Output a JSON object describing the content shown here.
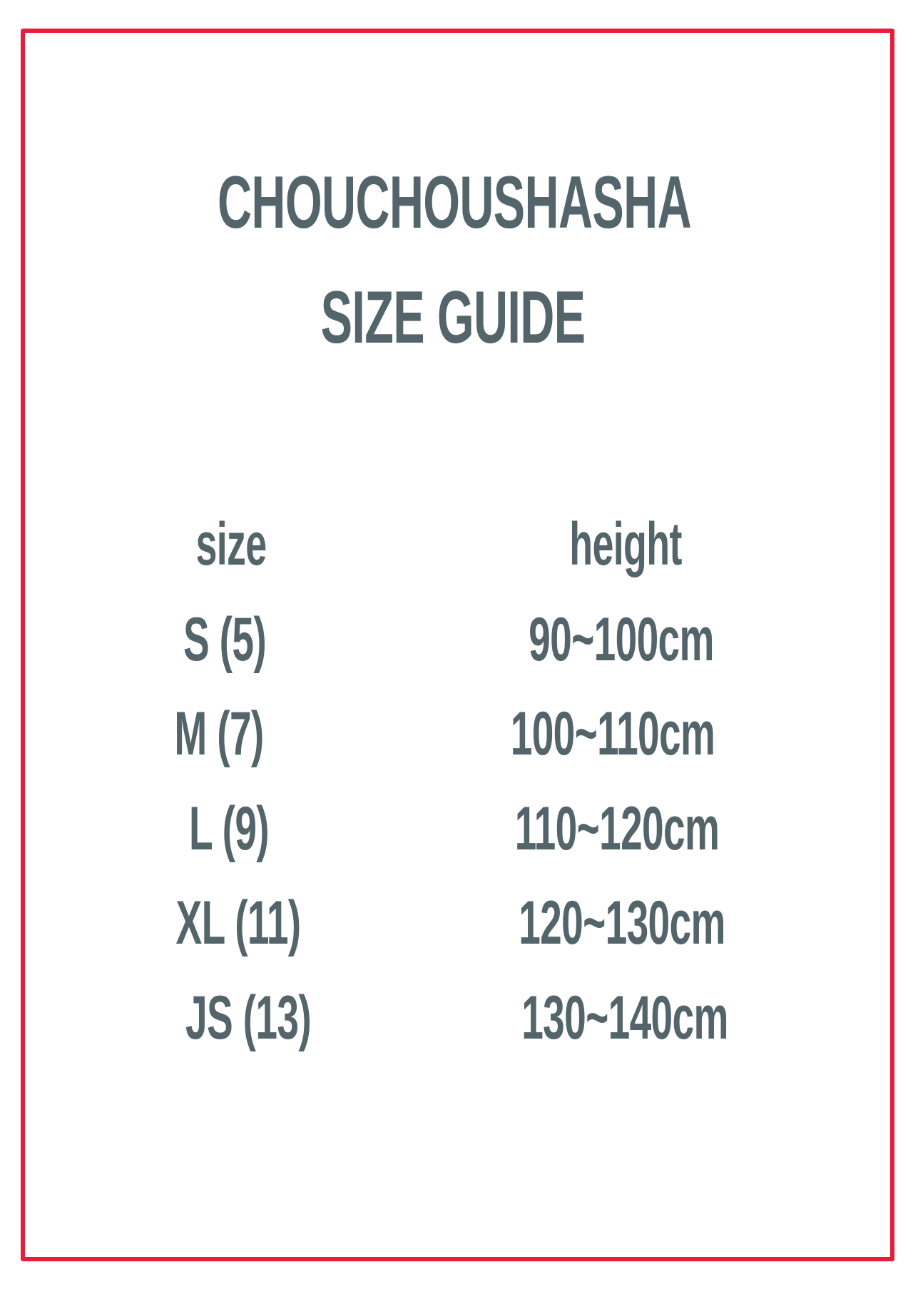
{
  "brand": "CHOUCHOUSHASHA",
  "title": "SIZE GUIDE",
  "colors": {
    "text": "#53646a",
    "border": "#ea1c3c"
  },
  "table": {
    "headers": [
      "size",
      "height"
    ],
    "rows": [
      {
        "size": "S (5)",
        "height": "90~100cm"
      },
      {
        "size": "M (7)",
        "height": "100~110cm"
      },
      {
        "size": "L (9)",
        "height": "110~120cm"
      },
      {
        "size": "XL (11)",
        "height": "120~130cm"
      },
      {
        "size": "JS (13)",
        "height": "130~140cm"
      }
    ]
  }
}
